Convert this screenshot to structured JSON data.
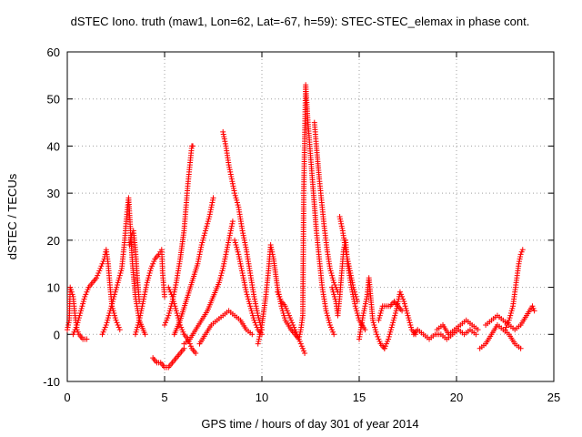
{
  "chart_data": {
    "type": "scatter",
    "title": "dSTEC Iono. truth (maw1, Lon=62, Lat=-67, h=59): STEC-STEC_elemax in phase cont.",
    "xlabel": "GPS time / hours of day 301 of year 2014",
    "ylabel": "dSTEC  / TECUs",
    "xlim": [
      0,
      25
    ],
    "ylim": [
      -10,
      60
    ],
    "x_ticks": [
      0,
      5,
      10,
      15,
      20,
      25
    ],
    "y_ticks": [
      -10,
      0,
      10,
      20,
      30,
      40,
      50,
      60
    ],
    "x_tick_labels": [
      "0",
      "5",
      "10",
      "15",
      "20",
      "25"
    ],
    "y_tick_labels": [
      "-10",
      "0",
      "10",
      "20",
      "30",
      "40",
      "50",
      "60"
    ],
    "grid": true,
    "marker": "+",
    "color": "#ff0000",
    "series": [
      {
        "points": [
          [
            0.0,
            1
          ],
          [
            0.1,
            3
          ],
          [
            0.15,
            10
          ],
          [
            0.3,
            8
          ],
          [
            0.4,
            4
          ],
          [
            0.5,
            1
          ],
          [
            0.6,
            0
          ],
          [
            0.8,
            -1
          ],
          [
            1.0,
            -1
          ]
        ]
      },
      {
        "points": [
          [
            0.3,
            0
          ],
          [
            0.5,
            2
          ],
          [
            0.7,
            5
          ],
          [
            0.9,
            8
          ],
          [
            1.1,
            10
          ],
          [
            1.3,
            11
          ],
          [
            1.5,
            12
          ],
          [
            1.7,
            14
          ],
          [
            1.9,
            16
          ],
          [
            2.0,
            18
          ],
          [
            2.1,
            15
          ],
          [
            2.2,
            10
          ],
          [
            2.3,
            6
          ],
          [
            2.5,
            3
          ],
          [
            2.7,
            1
          ]
        ]
      },
      {
        "points": [
          [
            1.8,
            0
          ],
          [
            2.0,
            2
          ],
          [
            2.2,
            5
          ],
          [
            2.4,
            8
          ],
          [
            2.6,
            11
          ],
          [
            2.8,
            14
          ],
          [
            2.95,
            20
          ],
          [
            3.05,
            25
          ],
          [
            3.15,
            29
          ],
          [
            3.25,
            22
          ],
          [
            3.35,
            15
          ],
          [
            3.5,
            8
          ],
          [
            3.7,
            3
          ],
          [
            4.0,
            0
          ]
        ]
      },
      {
        "points": [
          [
            3.2,
            19
          ],
          [
            3.3,
            21
          ],
          [
            3.4,
            22
          ],
          [
            3.5,
            18
          ],
          [
            3.6,
            12
          ],
          [
            3.7,
            7
          ]
        ]
      },
      {
        "points": [
          [
            3.5,
            0
          ],
          [
            3.7,
            3
          ],
          [
            3.9,
            7
          ],
          [
            4.1,
            11
          ],
          [
            4.3,
            14
          ],
          [
            4.5,
            16
          ],
          [
            4.7,
            17
          ],
          [
            4.85,
            18
          ],
          [
            4.9,
            13
          ],
          [
            5.0,
            8
          ]
        ]
      },
      {
        "points": [
          [
            4.4,
            -5
          ],
          [
            4.6,
            -6
          ],
          [
            4.8,
            -6
          ],
          [
            5.0,
            -7
          ],
          [
            5.2,
            -7
          ],
          [
            5.4,
            -6
          ],
          [
            5.6,
            -5
          ],
          [
            5.8,
            -4
          ],
          [
            6.0,
            -3
          ]
        ]
      },
      {
        "points": [
          [
            5.0,
            2
          ],
          [
            5.2,
            4
          ],
          [
            5.4,
            7
          ],
          [
            5.6,
            11
          ],
          [
            5.8,
            16
          ],
          [
            6.0,
            22
          ],
          [
            6.1,
            27
          ],
          [
            6.2,
            32
          ],
          [
            6.3,
            36
          ],
          [
            6.4,
            40
          ],
          [
            6.45,
            40
          ]
        ]
      },
      {
        "points": [
          [
            5.2,
            10
          ],
          [
            5.4,
            8
          ],
          [
            5.6,
            5
          ],
          [
            5.8,
            2
          ],
          [
            6.0,
            0
          ],
          [
            6.2,
            -1
          ],
          [
            6.4,
            -3
          ],
          [
            6.6,
            -4
          ]
        ]
      },
      {
        "points": [
          [
            5.5,
            0
          ],
          [
            5.8,
            3
          ],
          [
            6.1,
            7
          ],
          [
            6.4,
            11
          ],
          [
            6.7,
            15
          ],
          [
            6.9,
            19
          ],
          [
            7.1,
            22
          ],
          [
            7.3,
            25
          ],
          [
            7.45,
            28
          ],
          [
            7.5,
            29
          ]
        ]
      },
      {
        "points": [
          [
            6.0,
            -2
          ],
          [
            6.3,
            -1
          ],
          [
            6.6,
            1
          ],
          [
            6.9,
            3
          ],
          [
            7.2,
            5
          ],
          [
            7.5,
            8
          ],
          [
            7.8,
            11
          ],
          [
            8.0,
            14
          ],
          [
            8.2,
            18
          ],
          [
            8.4,
            22
          ],
          [
            8.5,
            24
          ]
        ]
      },
      {
        "points": [
          [
            6.8,
            -2
          ],
          [
            7.1,
            0
          ],
          [
            7.4,
            2
          ],
          [
            7.7,
            3
          ],
          [
            8.0,
            4
          ],
          [
            8.3,
            5
          ],
          [
            8.6,
            4
          ],
          [
            8.9,
            3
          ],
          [
            9.2,
            1
          ],
          [
            9.5,
            0
          ]
        ]
      },
      {
        "points": [
          [
            8.0,
            43
          ],
          [
            8.15,
            40
          ],
          [
            8.3,
            36
          ],
          [
            8.45,
            33
          ],
          [
            8.6,
            30
          ],
          [
            8.8,
            27
          ],
          [
            9.0,
            22
          ],
          [
            9.2,
            18
          ],
          [
            9.4,
            13
          ],
          [
            9.6,
            8
          ],
          [
            9.8,
            4
          ],
          [
            10.0,
            1
          ]
        ]
      },
      {
        "points": [
          [
            8.6,
            20
          ],
          [
            8.8,
            17
          ],
          [
            9.0,
            13
          ],
          [
            9.2,
            9
          ],
          [
            9.4,
            6
          ],
          [
            9.6,
            3
          ],
          [
            9.8,
            1
          ],
          [
            10.0,
            0
          ]
        ]
      },
      {
        "points": [
          [
            9.8,
            -2
          ],
          [
            10.0,
            2
          ],
          [
            10.2,
            8
          ],
          [
            10.35,
            14
          ],
          [
            10.45,
            19
          ],
          [
            10.6,
            16
          ],
          [
            10.8,
            10
          ],
          [
            11.0,
            6
          ],
          [
            11.2,
            3
          ],
          [
            11.5,
            1
          ]
        ]
      },
      {
        "points": [
          [
            10.8,
            9
          ],
          [
            11.0,
            7
          ],
          [
            11.2,
            6
          ],
          [
            11.4,
            4
          ],
          [
            11.6,
            2
          ],
          [
            11.8,
            0
          ],
          [
            12.0,
            -2
          ],
          [
            12.2,
            -4
          ]
        ]
      },
      {
        "points": [
          [
            11.5,
            1
          ],
          [
            11.7,
            0
          ],
          [
            11.9,
            -1
          ],
          [
            12.0,
            1
          ],
          [
            12.1,
            4
          ],
          [
            12.15,
            30
          ],
          [
            12.25,
            53
          ],
          [
            12.35,
            46
          ],
          [
            12.5,
            38
          ],
          [
            12.65,
            30
          ],
          [
            12.8,
            22
          ],
          [
            12.95,
            16
          ],
          [
            13.1,
            10
          ],
          [
            13.3,
            5
          ],
          [
            13.5,
            2
          ],
          [
            13.7,
            0
          ]
        ]
      },
      {
        "points": [
          [
            12.7,
            45
          ],
          [
            12.8,
            40
          ],
          [
            12.95,
            33
          ],
          [
            13.1,
            27
          ],
          [
            13.2,
            23
          ],
          [
            13.35,
            18
          ],
          [
            13.5,
            14
          ],
          [
            13.7,
            11
          ],
          [
            13.9,
            9
          ]
        ]
      },
      {
        "points": [
          [
            13.6,
            10
          ],
          [
            13.8,
            7
          ],
          [
            13.9,
            4
          ],
          [
            14.0,
            8
          ],
          [
            14.1,
            13
          ],
          [
            14.2,
            18
          ],
          [
            14.3,
            20
          ],
          [
            14.4,
            15
          ],
          [
            14.6,
            10
          ],
          [
            14.8,
            6
          ],
          [
            15.0,
            3
          ],
          [
            15.3,
            1
          ]
        ]
      },
      {
        "points": [
          [
            14.0,
            25
          ],
          [
            14.15,
            22
          ],
          [
            14.3,
            18
          ],
          [
            14.5,
            14
          ],
          [
            14.7,
            10
          ],
          [
            14.9,
            7
          ]
        ]
      },
      {
        "points": [
          [
            15.0,
            -1
          ],
          [
            15.2,
            4
          ],
          [
            15.4,
            8
          ],
          [
            15.5,
            12
          ],
          [
            15.7,
            3
          ],
          [
            15.9,
            0
          ],
          [
            16.1,
            -2
          ],
          [
            16.3,
            -3
          ]
        ]
      },
      {
        "points": [
          [
            16.3,
            -3
          ],
          [
            16.5,
            -1
          ],
          [
            16.7,
            2
          ],
          [
            16.9,
            5
          ],
          [
            17.1,
            9
          ],
          [
            17.3,
            7
          ],
          [
            17.5,
            4
          ],
          [
            17.7,
            1
          ],
          [
            17.9,
            0
          ]
        ]
      },
      {
        "points": [
          [
            16.0,
            3
          ],
          [
            16.2,
            6
          ],
          [
            16.4,
            6
          ],
          [
            16.6,
            6
          ],
          [
            16.8,
            7
          ],
          [
            17.0,
            6
          ],
          [
            17.2,
            5
          ]
        ]
      },
      {
        "points": [
          [
            17.8,
            0
          ],
          [
            18.0,
            1
          ],
          [
            18.3,
            0
          ],
          [
            18.6,
            -1
          ],
          [
            18.9,
            0
          ],
          [
            19.2,
            0
          ],
          [
            19.5,
            -1
          ],
          [
            19.8,
            0
          ],
          [
            20.1,
            1
          ],
          [
            20.4,
            0
          ],
          [
            20.7,
            1
          ],
          [
            21.0,
            0
          ]
        ]
      },
      {
        "points": [
          [
            19.0,
            1
          ],
          [
            19.3,
            2
          ],
          [
            19.6,
            0
          ],
          [
            19.9,
            1
          ],
          [
            20.2,
            2
          ],
          [
            20.5,
            3
          ],
          [
            20.8,
            2
          ],
          [
            21.1,
            1
          ]
        ]
      },
      {
        "points": [
          [
            21.2,
            -3
          ],
          [
            21.5,
            -2
          ],
          [
            21.8,
            0
          ],
          [
            22.1,
            2
          ],
          [
            22.4,
            1
          ],
          [
            22.7,
            0
          ],
          [
            23.0,
            -2
          ],
          [
            23.3,
            -3
          ]
        ]
      },
      {
        "points": [
          [
            21.5,
            2
          ],
          [
            21.8,
            3
          ],
          [
            22.1,
            4
          ],
          [
            22.4,
            3
          ],
          [
            22.7,
            2
          ],
          [
            23.0,
            1
          ],
          [
            23.3,
            2
          ],
          [
            23.6,
            4
          ],
          [
            23.9,
            6
          ],
          [
            24.0,
            5
          ]
        ]
      },
      {
        "points": [
          [
            22.5,
            1
          ],
          [
            22.7,
            3
          ],
          [
            22.9,
            6
          ],
          [
            23.0,
            9
          ],
          [
            23.1,
            12
          ],
          [
            23.2,
            15
          ],
          [
            23.3,
            17
          ],
          [
            23.4,
            18
          ]
        ]
      }
    ]
  }
}
